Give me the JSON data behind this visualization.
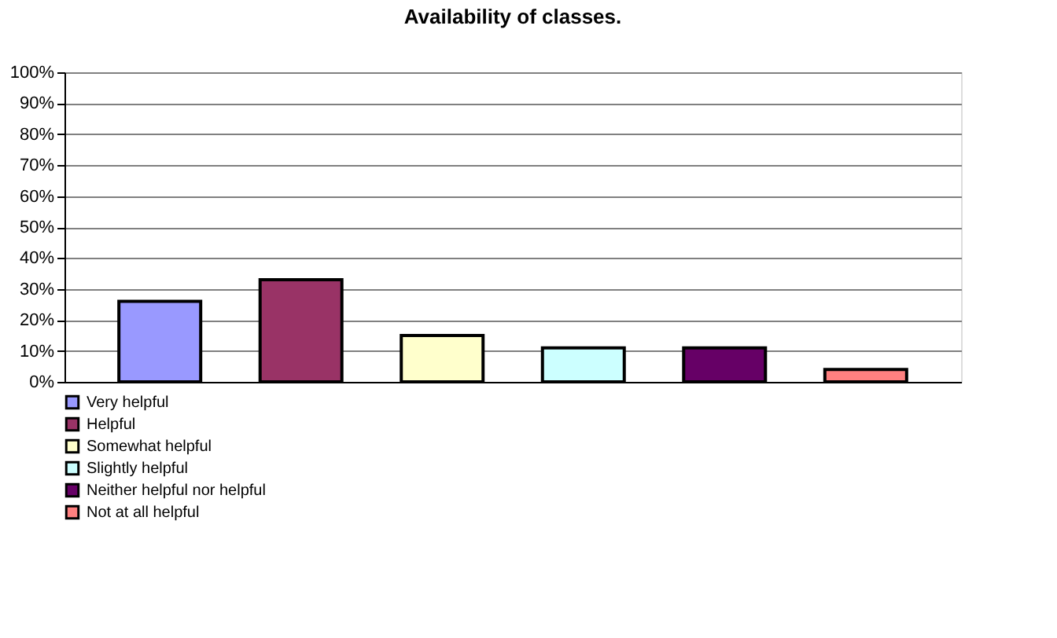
{
  "chart_data": {
    "type": "bar",
    "title": "Availability of classes.",
    "categories": [
      null
    ],
    "series": [
      {
        "name": "Very helpful",
        "color": "#9999ff",
        "values": [
          26
        ]
      },
      {
        "name": "Helpful",
        "color": "#993366",
        "values": [
          33
        ]
      },
      {
        "name": "Somewhat helpful",
        "color": "#ffffcc",
        "values": [
          15
        ]
      },
      {
        "name": "Slightly helpful",
        "color": "#ccffff",
        "values": [
          11
        ]
      },
      {
        "name": "Neither helpful nor helpful",
        "color": "#660066",
        "values": [
          11
        ]
      },
      {
        "name": "Not at all helpful",
        "color": "#ff8080",
        "values": [
          4
        ]
      }
    ],
    "ylim": [
      0,
      100
    ],
    "yticks": [
      {
        "value": 0,
        "label": "0%"
      },
      {
        "value": 10,
        "label": "10%"
      },
      {
        "value": 20,
        "label": "20%"
      },
      {
        "value": 30,
        "label": "30%"
      },
      {
        "value": 40,
        "label": "40%"
      },
      {
        "value": 50,
        "label": "50%"
      },
      {
        "value": 60,
        "label": "60%"
      },
      {
        "value": 70,
        "label": "70%"
      },
      {
        "value": 80,
        "label": "80%"
      },
      {
        "value": 90,
        "label": "90%"
      },
      {
        "value": 100,
        "label": "100%"
      }
    ],
    "grid": "y",
    "legend": "bottom left"
  }
}
